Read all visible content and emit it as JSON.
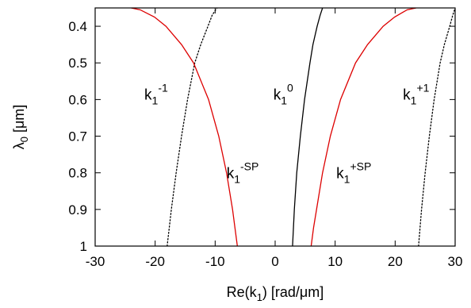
{
  "chart_data": {
    "type": "line",
    "title": "",
    "xlabel": {
      "main": "Re(k",
      "sub": "1",
      "units": ")  [rad/μm]"
    },
    "ylabel": {
      "main": "λ",
      "sub": "0",
      "units": "  [μm]"
    },
    "xlim": [
      -30,
      30
    ],
    "ylim": [
      0.35,
      1.0
    ],
    "y_inverted": true,
    "grid": false,
    "xticks": [
      -30,
      -20,
      -10,
      0,
      10,
      20,
      30
    ],
    "yticks": [
      0.4,
      0.5,
      0.6,
      0.7,
      0.8,
      0.9,
      1
    ],
    "xtick_labels": [
      "-30",
      "-20",
      "-10",
      "0",
      "10",
      "20",
      "30"
    ],
    "ytick_labels": [
      "0.4",
      "0.5",
      "0.6",
      "0.7",
      "0.8",
      "0.9",
      "1"
    ],
    "series": [
      {
        "id": "k1_minus1",
        "color": "#000000",
        "style": "dotted",
        "points": [
          [
            -18.0,
            1.0
          ],
          [
            -17.3,
            0.9
          ],
          [
            -16.5,
            0.8
          ],
          [
            -15.6,
            0.7
          ],
          [
            -14.6,
            0.6
          ],
          [
            -13.4,
            0.5
          ],
          [
            -12.4,
            0.45
          ],
          [
            -11.2,
            0.4
          ],
          [
            -10.5,
            0.37
          ],
          [
            -9.7,
            0.35
          ]
        ]
      },
      {
        "id": "k1_minus_sp",
        "color": "#dd0000",
        "style": "solid",
        "points": [
          [
            -6.3,
            1.0
          ],
          [
            -6.7,
            0.95
          ],
          [
            -7.1,
            0.9
          ],
          [
            -8.1,
            0.8
          ],
          [
            -9.4,
            0.7
          ],
          [
            -11.1,
            0.6
          ],
          [
            -13.6,
            0.5
          ],
          [
            -15.6,
            0.45
          ],
          [
            -18.2,
            0.4
          ],
          [
            -20.1,
            0.375
          ],
          [
            -22.5,
            0.355
          ],
          [
            -24.0,
            0.35
          ]
        ]
      },
      {
        "id": "k1_0",
        "color": "#000000",
        "style": "solid",
        "points": [
          [
            2.9,
            1.0
          ],
          [
            3.2,
            0.9
          ],
          [
            3.6,
            0.8
          ],
          [
            4.2,
            0.7
          ],
          [
            4.9,
            0.6
          ],
          [
            5.8,
            0.5
          ],
          [
            6.3,
            0.45
          ],
          [
            7.0,
            0.4
          ],
          [
            7.5,
            0.37
          ],
          [
            7.9,
            0.35
          ]
        ]
      },
      {
        "id": "k1_plus_sp",
        "color": "#dd0000",
        "style": "solid",
        "points": [
          [
            6.0,
            1.0
          ],
          [
            6.4,
            0.95
          ],
          [
            6.9,
            0.9
          ],
          [
            7.9,
            0.8
          ],
          [
            9.2,
            0.7
          ],
          [
            10.9,
            0.6
          ],
          [
            13.4,
            0.5
          ],
          [
            15.4,
            0.45
          ],
          [
            18.0,
            0.4
          ],
          [
            19.9,
            0.375
          ],
          [
            22.0,
            0.355
          ],
          [
            23.5,
            0.35
          ]
        ]
      },
      {
        "id": "k1_plus1",
        "color": "#000000",
        "style": "dotted",
        "points": [
          [
            23.9,
            1.0
          ],
          [
            24.4,
            0.9
          ],
          [
            25.0,
            0.8
          ],
          [
            25.7,
            0.7
          ],
          [
            26.5,
            0.6
          ],
          [
            27.5,
            0.5
          ],
          [
            28.2,
            0.45
          ],
          [
            29.1,
            0.4
          ],
          [
            29.6,
            0.37
          ],
          [
            30.0,
            0.35
          ]
        ]
      }
    ],
    "annotations": [
      {
        "id": "label-k1-minus1",
        "base": "k",
        "sub": "1",
        "sup": "-1",
        "x": -21.8,
        "y": 0.6
      },
      {
        "id": "label-k1-0",
        "base": "k",
        "sub": "1",
        "sup": "0",
        "x": -0.3,
        "y": 0.6
      },
      {
        "id": "label-k1-plus1",
        "base": "k",
        "sub": "1",
        "sup": "+1",
        "x": 21.3,
        "y": 0.6
      },
      {
        "id": "label-k1-minus-sp",
        "base": "k",
        "sub": "1",
        "sup": "-SP",
        "x": -8.1,
        "y": 0.815
      },
      {
        "id": "label-k1-plus-sp",
        "base": "k",
        "sub": "1",
        "sup": "+SP",
        "x": 10.2,
        "y": 0.815
      }
    ]
  }
}
